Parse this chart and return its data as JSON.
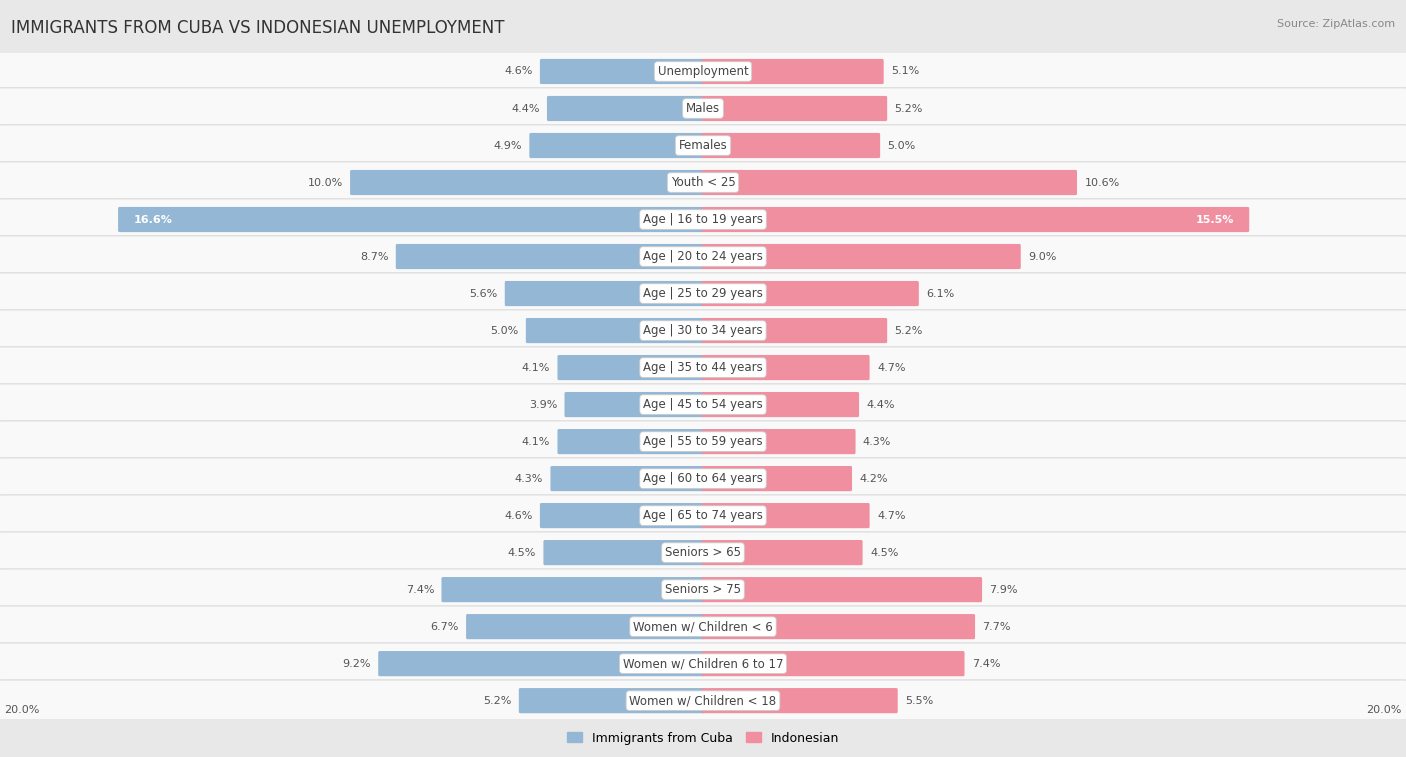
{
  "title": "IMMIGRANTS FROM CUBA VS INDONESIAN UNEMPLOYMENT",
  "source": "Source: ZipAtlas.com",
  "categories": [
    "Unemployment",
    "Males",
    "Females",
    "Youth < 25",
    "Age | 16 to 19 years",
    "Age | 20 to 24 years",
    "Age | 25 to 29 years",
    "Age | 30 to 34 years",
    "Age | 35 to 44 years",
    "Age | 45 to 54 years",
    "Age | 55 to 59 years",
    "Age | 60 to 64 years",
    "Age | 65 to 74 years",
    "Seniors > 65",
    "Seniors > 75",
    "Women w/ Children < 6",
    "Women w/ Children 6 to 17",
    "Women w/ Children < 18"
  ],
  "cuba_values": [
    4.6,
    4.4,
    4.9,
    10.0,
    16.6,
    8.7,
    5.6,
    5.0,
    4.1,
    3.9,
    4.1,
    4.3,
    4.6,
    4.5,
    7.4,
    6.7,
    9.2,
    5.2
  ],
  "indonesian_values": [
    5.1,
    5.2,
    5.0,
    10.6,
    15.5,
    9.0,
    6.1,
    5.2,
    4.7,
    4.4,
    4.3,
    4.2,
    4.7,
    4.5,
    7.9,
    7.7,
    7.4,
    5.5
  ],
  "cuba_color": "#93b7d4",
  "indonesian_color": "#f08fa0",
  "cuba_label": "Immigrants from Cuba",
  "indonesian_label": "Indonesian",
  "axis_limit": 20.0,
  "bg_color": "#e8e8e8",
  "row_bg_color": "#f5f5f5",
  "label_fontsize": 8.5,
  "title_fontsize": 12,
  "value_fontsize": 8,
  "source_fontsize": 8
}
